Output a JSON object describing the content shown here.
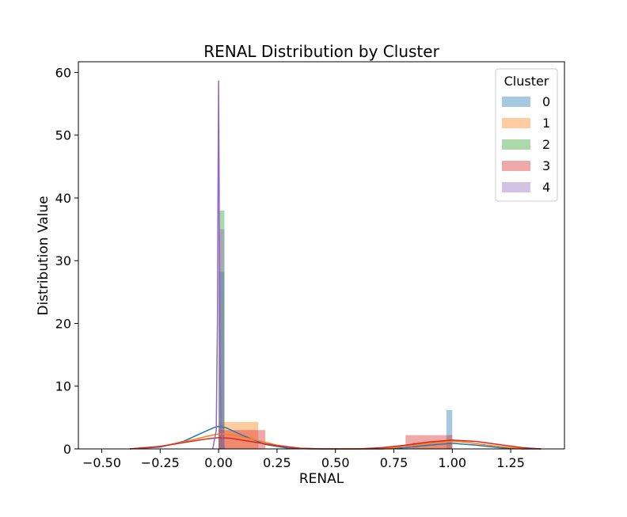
{
  "chart_data": {
    "type": "histogram",
    "title": "RENAL Distribution by Cluster",
    "xlabel": "RENAL",
    "ylabel": "Distribution Value",
    "xlim": [
      -0.6,
      1.48
    ],
    "ylim": [
      0,
      61.7
    ],
    "xticks": [
      -0.5,
      -0.25,
      0.0,
      0.25,
      0.5,
      0.75,
      1.0,
      1.25
    ],
    "xtick_labels": [
      "−0.50",
      "−0.25",
      "0.00",
      "0.25",
      "0.50",
      "0.75",
      "1.00",
      "1.25"
    ],
    "yticks": [
      0,
      10,
      20,
      30,
      40,
      50,
      60
    ],
    "ytick_labels": [
      "0",
      "10",
      "20",
      "30",
      "40",
      "50",
      "60"
    ],
    "grid": false,
    "legend": {
      "title": "Cluster",
      "placement": "top-right"
    },
    "series": [
      {
        "name": "0",
        "color": "#1f77b4",
        "bars": [
          {
            "x0": 0.0,
            "x1": 0.025,
            "height": 28.2
          },
          {
            "x0": 0.975,
            "x1": 1.0,
            "height": 6.2
          }
        ],
        "kde": [
          [
            -0.38,
            0.0
          ],
          [
            -0.25,
            0.3
          ],
          [
            -0.15,
            1.2
          ],
          [
            -0.08,
            2.4
          ],
          [
            -0.02,
            3.4
          ],
          [
            0.0,
            3.6
          ],
          [
            0.03,
            3.4
          ],
          [
            0.1,
            2.2
          ],
          [
            0.2,
            0.7
          ],
          [
            0.3,
            0.1
          ],
          [
            0.4,
            0.0
          ],
          [
            0.7,
            0.0
          ],
          [
            0.8,
            0.2
          ],
          [
            0.9,
            0.6
          ],
          [
            1.0,
            0.9
          ],
          [
            1.1,
            0.6
          ],
          [
            1.2,
            0.2
          ],
          [
            1.3,
            0.0
          ],
          [
            1.38,
            0.0
          ]
        ]
      },
      {
        "name": "1",
        "color": "#ff7f0e",
        "bars": [
          {
            "x0": 0.0,
            "x1": 0.17,
            "height": 4.3
          },
          {
            "x0": 0.83,
            "x1": 1.0,
            "height": 1.0
          }
        ],
        "kde": [
          [
            -0.38,
            0.0
          ],
          [
            -0.25,
            0.4
          ],
          [
            -0.15,
            1.1
          ],
          [
            -0.05,
            2.0
          ],
          [
            0.0,
            2.4
          ],
          [
            0.05,
            2.3
          ],
          [
            0.15,
            1.5
          ],
          [
            0.25,
            0.6
          ],
          [
            0.35,
            0.1
          ],
          [
            0.45,
            0.0
          ],
          [
            0.65,
            0.0
          ],
          [
            0.75,
            0.2
          ],
          [
            0.85,
            0.7
          ],
          [
            0.95,
            1.1
          ],
          [
            1.0,
            1.2
          ],
          [
            1.05,
            1.1
          ],
          [
            1.15,
            0.6
          ],
          [
            1.25,
            0.2
          ],
          [
            1.38,
            0.0
          ]
        ]
      },
      {
        "name": "2",
        "color": "#2ca02c",
        "bars": [
          {
            "x0": 0.0,
            "x1": 0.025,
            "height": 38.0
          }
        ],
        "kde": []
      },
      {
        "name": "3",
        "color": "#d62728",
        "bars": [
          {
            "x0": 0.0,
            "x1": 0.2,
            "height": 3.0
          },
          {
            "x0": 0.8,
            "x1": 1.0,
            "height": 2.2
          }
        ],
        "kde": [
          [
            -0.38,
            0.0
          ],
          [
            -0.25,
            0.4
          ],
          [
            -0.15,
            1.0
          ],
          [
            -0.05,
            1.6
          ],
          [
            0.0,
            1.8
          ],
          [
            0.05,
            1.7
          ],
          [
            0.15,
            1.1
          ],
          [
            0.25,
            0.5
          ],
          [
            0.35,
            0.1
          ],
          [
            0.45,
            0.0
          ],
          [
            0.6,
            0.0
          ],
          [
            0.7,
            0.2
          ],
          [
            0.8,
            0.6
          ],
          [
            0.9,
            1.1
          ],
          [
            1.0,
            1.4
          ],
          [
            1.1,
            1.2
          ],
          [
            1.2,
            0.7
          ],
          [
            1.3,
            0.2
          ],
          [
            1.38,
            0.0
          ]
        ]
      },
      {
        "name": "4",
        "color": "#9467bd",
        "bars": [
          {
            "x0": 0.0,
            "x1": 0.025,
            "height": 35.0
          }
        ],
        "kde": [
          [
            -0.025,
            0.0
          ],
          [
            -0.01,
            3.0
          ],
          [
            -0.005,
            20.0
          ],
          [
            -0.002,
            45.0
          ],
          [
            0.0,
            58.7
          ],
          [
            0.002,
            45.0
          ],
          [
            0.005,
            20.0
          ],
          [
            0.01,
            3.0
          ],
          [
            0.025,
            0.0
          ]
        ]
      }
    ]
  }
}
